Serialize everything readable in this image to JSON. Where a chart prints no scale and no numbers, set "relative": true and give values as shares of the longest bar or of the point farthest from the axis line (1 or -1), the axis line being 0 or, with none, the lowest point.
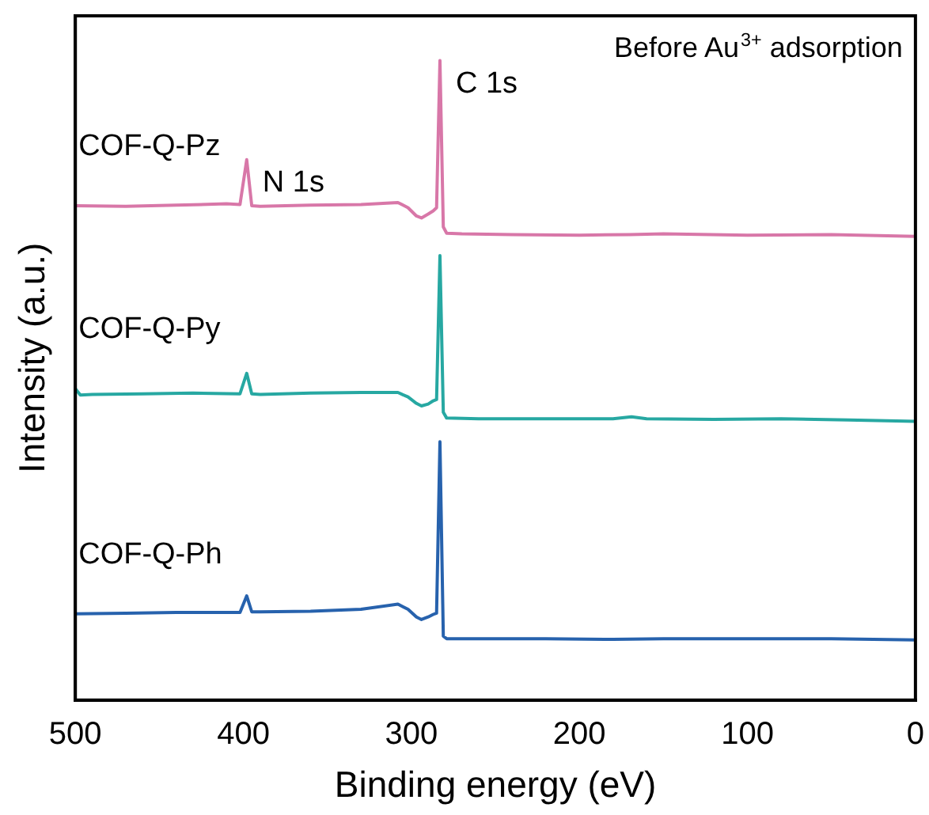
{
  "chart_data": {
    "type": "line",
    "relative": true,
    "xlabel": "Binding energy (eV)",
    "ylabel": "Intensity (a.u.)",
    "xlim": [
      500,
      0
    ],
    "xticks": [
      500,
      400,
      300,
      200,
      100,
      0
    ],
    "grid": false,
    "legend": false,
    "marker": "none",
    "line_style": "solid",
    "annotations": [
      {
        "text": "N 1s",
        "x": 398,
        "y": 0.845
      },
      {
        "text": "C 1s",
        "x": 283,
        "y": 1.0
      },
      "Before Au$^{3+}$ adsorption"
    ],
    "series": [
      {
        "name": "COF-Q-Pz",
        "color": "#d877a8",
        "x": [
          500,
          470,
          440,
          410,
          402,
          398,
          395,
          390,
          360,
          330,
          308,
          302,
          297,
          294,
          290,
          287,
          285,
          283,
          281,
          279,
          270,
          240,
          200,
          170,
          150,
          100,
          50,
          0
        ],
        "values": [
          0.773,
          0.772,
          0.774,
          0.776,
          0.775,
          0.845,
          0.773,
          0.772,
          0.774,
          0.775,
          0.778,
          0.77,
          0.757,
          0.754,
          0.76,
          0.765,
          0.77,
          1.0,
          0.74,
          0.73,
          0.729,
          0.728,
          0.727,
          0.728,
          0.729,
          0.727,
          0.728,
          0.725
        ]
      },
      {
        "name": "COF-Q-Py",
        "color": "#27a8a2",
        "x": [
          500,
          497,
          490,
          460,
          430,
          402,
          398,
          395,
          390,
          360,
          330,
          308,
          302,
          297,
          294,
          290,
          287,
          285,
          283,
          281,
          279,
          260,
          220,
          180,
          169,
          160,
          120,
          80,
          40,
          0
        ],
        "values": [
          0.487,
          0.477,
          0.478,
          0.479,
          0.48,
          0.479,
          0.511,
          0.479,
          0.478,
          0.48,
          0.481,
          0.481,
          0.474,
          0.464,
          0.46,
          0.463,
          0.468,
          0.47,
          0.695,
          0.45,
          0.441,
          0.44,
          0.44,
          0.44,
          0.443,
          0.44,
          0.439,
          0.44,
          0.438,
          0.436
        ]
      },
      {
        "name": "COF-Q-Ph",
        "color": "#2762ad",
        "x": [
          500,
          470,
          440,
          410,
          402,
          398,
          395,
          390,
          360,
          330,
          308,
          302,
          297,
          294,
          290,
          287,
          285,
          283,
          281,
          279,
          260,
          220,
          180,
          150,
          100,
          50,
          0
        ],
        "values": [
          0.135,
          0.136,
          0.137,
          0.137,
          0.137,
          0.163,
          0.138,
          0.138,
          0.139,
          0.142,
          0.15,
          0.142,
          0.13,
          0.126,
          0.13,
          0.134,
          0.136,
          0.404,
          0.1,
          0.096,
          0.096,
          0.096,
          0.095,
          0.096,
          0.096,
          0.096,
          0.094
        ]
      }
    ]
  }
}
